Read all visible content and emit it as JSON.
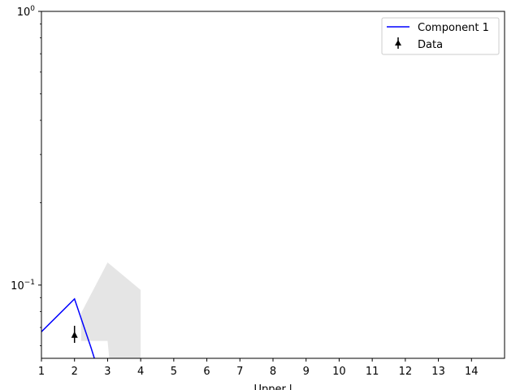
{
  "chart_data": {
    "type": "line",
    "title": "",
    "xlabel": "Upper l",
    "ylabel": "",
    "xlim": [
      1,
      15
    ],
    "ylim": [
      0.054,
      1
    ],
    "yscale": "log",
    "grid": false,
    "legend_position": "top-right",
    "xticks": [
      1,
      2,
      3,
      4,
      5,
      6,
      7,
      8,
      9,
      10,
      11,
      12,
      13,
      14
    ],
    "yticks": [
      {
        "value": 0.1,
        "base": "10",
        "exp": "−1"
      },
      {
        "value": 1,
        "base": "10",
        "exp": "0"
      }
    ],
    "series": [
      {
        "name": "Component 1",
        "kind": "line",
        "color": "#0000ff",
        "x": [
          1,
          2,
          2.5,
          2.6
        ],
        "y": [
          0.0675,
          0.089,
          0.059,
          0.054
        ]
      },
      {
        "name": "Data",
        "kind": "errorbar-point",
        "color": "#000000",
        "x": [
          2
        ],
        "y": [
          0.0655
        ],
        "yerr_low": [
          0.0615
        ],
        "yerr_high": [
          0.071
        ]
      }
    ],
    "band": {
      "color": "#e5e5e5",
      "upper": [
        [
          2.2,
          0.079
        ],
        [
          3,
          0.121
        ],
        [
          4,
          0.096
        ],
        [
          4,
          0.054
        ]
      ],
      "lower": [
        [
          3.05,
          0.054
        ],
        [
          3,
          0.0625
        ],
        [
          2.2,
          0.0625
        ]
      ]
    }
  }
}
